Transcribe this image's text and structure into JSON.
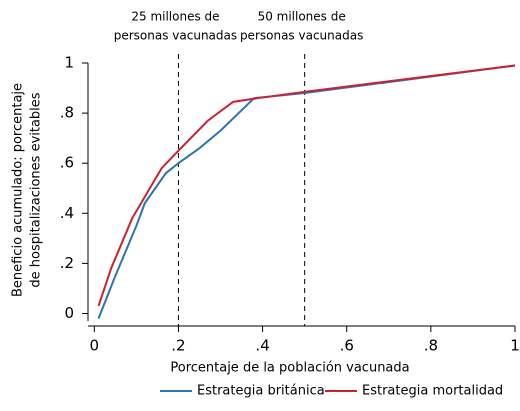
{
  "chart_data": {
    "type": "line",
    "xlabel": "Porcentaje de la población vacunada",
    "ylabel": [
      "Beneficio acumulado: porcentaje",
      "de hospitalizaciones evitables"
    ],
    "xlim": [
      -0.015,
      1.0
    ],
    "ylim": [
      -0.03,
      1.0
    ],
    "xticks": [
      0,
      {
        "value": 0.2,
        "label": ".2"
      },
      {
        "value": 0.4,
        "label": ".4"
      },
      {
        "value": 0.6,
        "label": ".6"
      },
      {
        "value": 0.8,
        "label": ".8"
      },
      1
    ],
    "yticks": [
      0,
      {
        "value": 0.2,
        "label": ".2"
      },
      {
        "value": 0.4,
        "label": ".4"
      },
      {
        "value": 0.6,
        "label": ".6"
      },
      {
        "value": 0.8,
        "label": ".8"
      },
      1
    ],
    "annotations": [
      {
        "x": 0.2,
        "text": [
          "25 millones de",
          "personas vacunadas"
        ]
      },
      {
        "x": 0.5,
        "text": [
          "50 millones de",
          "personas vacunadas"
        ]
      }
    ],
    "series": [
      {
        "name": "Estrategia británica",
        "color": "#2a74b5",
        "x": [
          0.01,
          0.05,
          0.1,
          0.12,
          0.17,
          0.2,
          0.25,
          0.3,
          0.38,
          0.5,
          1.0
        ],
        "values": [
          -0.02,
          0.15,
          0.35,
          0.44,
          0.56,
          0.6,
          0.66,
          0.73,
          0.86,
          0.88,
          0.99
        ]
      },
      {
        "name": "Estrategia mortalidad",
        "color": "#d0202e",
        "x": [
          0.01,
          0.04,
          0.09,
          0.16,
          0.2,
          0.27,
          0.33,
          0.39,
          0.5,
          1.0
        ],
        "values": [
          0.03,
          0.18,
          0.38,
          0.58,
          0.65,
          0.77,
          0.845,
          0.86,
          0.885,
          0.99
        ]
      }
    ]
  }
}
